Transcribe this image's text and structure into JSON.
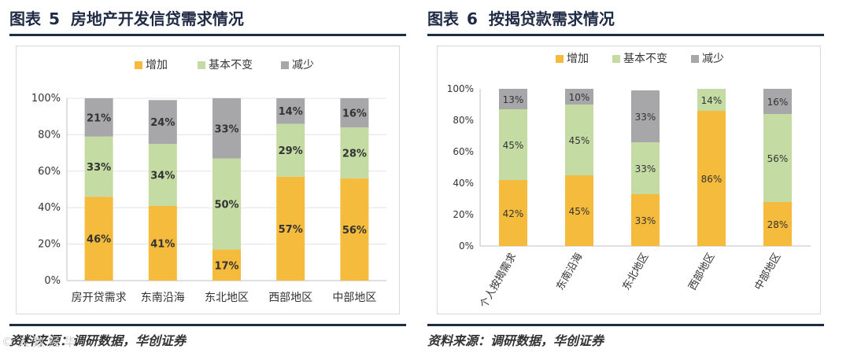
{
  "colors": {
    "increase": "#f5bb3c",
    "same": "#c4dba4",
    "decrease": "#a7a6a8",
    "title": "#1f2a44"
  },
  "watermark": "© 人 数 经 华",
  "chart_data": [
    {
      "type": "bar",
      "stacked": true,
      "title": "图表 5 房地产开发信贷需求情况",
      "title_label": "图表",
      "title_num": "5",
      "title_text": "房地产开发信贷需求情况",
      "source": "资料来源：调研数据，华创证券",
      "legend_position": "top",
      "categories": [
        "房开贷需求",
        "东南沿海",
        "东北地区",
        "西部地区",
        "中部地区"
      ],
      "series": [
        {
          "name": "增加",
          "values": [
            46,
            41,
            17,
            57,
            56
          ],
          "labels": [
            "46%",
            "41%",
            "17%",
            "57%",
            "56%"
          ]
        },
        {
          "name": "基本不变",
          "values": [
            33,
            34,
            50,
            29,
            28
          ],
          "labels": [
            "33%",
            "34%",
            "50%",
            "29%",
            "28%"
          ]
        },
        {
          "name": "减少",
          "values": [
            21,
            24,
            33,
            14,
            16
          ],
          "labels": [
            "21%",
            "24%",
            "33%",
            "14%",
            "16%"
          ]
        }
      ],
      "yticks": [
        "0%",
        "20%",
        "40%",
        "60%",
        "80%",
        "100%"
      ],
      "ylim": [
        0,
        100
      ],
      "grid": true
    },
    {
      "type": "bar",
      "stacked": true,
      "title": "图表 6 按揭贷款需求情况",
      "title_label": "图表",
      "title_num": "6",
      "title_text": "按揭贷款需求情况",
      "source": "资料来源：调研数据，华创证券",
      "legend_position": "top",
      "categories": [
        "个人按揭需求",
        "东南沿海",
        "东北地区",
        "西部地区",
        "中部地区"
      ],
      "series": [
        {
          "name": "增加",
          "values": [
            42,
            45,
            33,
            86,
            28
          ],
          "labels": [
            "42%",
            "45%",
            "33%",
            "86%",
            "28%"
          ]
        },
        {
          "name": "基本不变",
          "values": [
            45,
            45,
            33,
            14,
            56
          ],
          "labels": [
            "45%",
            "45%",
            "33%",
            "14%",
            "56%"
          ]
        },
        {
          "name": "减少",
          "values": [
            13,
            10,
            33,
            0,
            16
          ],
          "labels": [
            "13%",
            "10%",
            "33%",
            "",
            "16%"
          ]
        }
      ],
      "yticks": [
        "0%",
        "20%",
        "40%",
        "60%",
        "80%",
        "100%"
      ],
      "ylim": [
        0,
        100
      ],
      "grid": false
    }
  ]
}
